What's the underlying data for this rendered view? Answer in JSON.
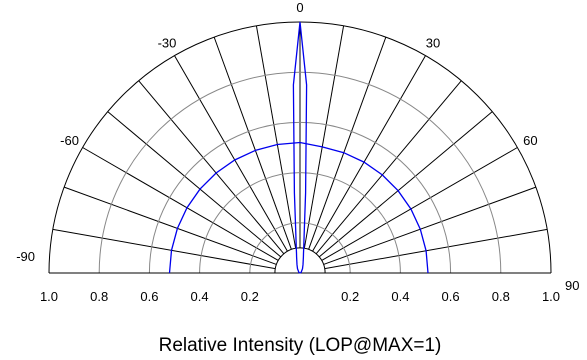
{
  "chart_data": {
    "type": "polar-half",
    "xlabel": "Relative Intensity (LOP@MAX=1)",
    "angle_ticks": [
      "-90",
      "-60",
      "-30",
      "0",
      "30",
      "60",
      "90"
    ],
    "angle_tick_values": [
      -90,
      -60,
      -30,
      0,
      30,
      60,
      90
    ],
    "radial_ticks_left": [
      "1.0",
      "0.8",
      "0.6",
      "0.4",
      "0.2"
    ],
    "radial_ticks_right": [
      "0.2",
      "0.4",
      "0.6",
      "0.8",
      "1.0"
    ],
    "radial_tick_values": [
      0.2,
      0.4,
      0.6,
      0.8,
      1.0
    ],
    "radial_range": [
      0,
      1
    ],
    "spoke_step_degrees": 10,
    "colors": {
      "curve": "#0000ee",
      "grid_outer": "#000000",
      "grid_inner": "#888888"
    },
    "series": [
      {
        "values_angle": [
          -90,
          -80,
          -70,
          -60,
          -50,
          -40,
          -30,
          -20,
          -10,
          0,
          10,
          20,
          30,
          40,
          50,
          60,
          70,
          80,
          90
        ],
        "values_r": [
          0.52,
          0.52,
          0.52,
          0.52,
          0.52,
          0.52,
          0.52,
          0.52,
          0.52,
          0.52,
          0.51,
          0.51,
          0.51,
          0.51,
          0.51,
          0.51,
          0.51,
          0.51,
          0.51
        ]
      },
      {
        "values_angle": [
          -90,
          -60,
          -30,
          -20,
          -15,
          -12,
          -10,
          -8,
          -6,
          -4,
          -2,
          0,
          2,
          4,
          6,
          8,
          10,
          12,
          15,
          20,
          30,
          60,
          90
        ],
        "values_r": [
          0,
          0.005,
          0.02,
          0.035,
          0.05,
          0.065,
          0.08,
          0.11,
          0.16,
          0.32,
          0.75,
          1.0,
          0.75,
          0.32,
          0.16,
          0.11,
          0.08,
          0.065,
          0.05,
          0.035,
          0.02,
          0.005,
          0
        ]
      }
    ]
  }
}
